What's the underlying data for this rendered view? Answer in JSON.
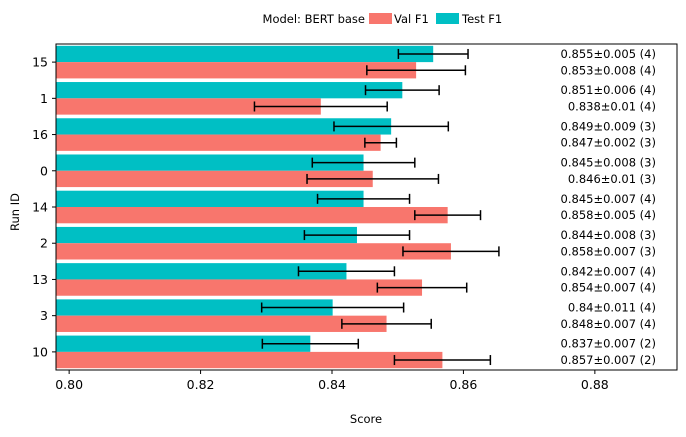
{
  "chart_data": {
    "type": "bar",
    "orientation": "horizontal",
    "legend": {
      "title": "Model: BERT base",
      "placement": "top-center",
      "entries": [
        {
          "label": "Val F1",
          "color": "#f8766d"
        },
        {
          "label": "Test F1",
          "color": "#00bfc4"
        }
      ]
    },
    "xlabel": "Score",
    "ylabel": "Run ID",
    "xlim": [
      0.798,
      0.8925
    ],
    "xticks": [
      0.8,
      0.82,
      0.84,
      0.86,
      0.88
    ],
    "xtick_labels": [
      "0.80",
      "0.82",
      "0.84",
      "0.86",
      "0.88"
    ],
    "categories": [
      "15",
      "1",
      "16",
      "0",
      "14",
      "2",
      "13",
      "3",
      "10"
    ],
    "series": [
      {
        "name": "Val F1",
        "color": "#f8766d",
        "values": [
          0.8528,
          0.8383,
          0.8474,
          0.8462,
          0.8576,
          0.8581,
          0.8537,
          0.8483,
          0.8568
        ],
        "errors": [
          0.0075,
          0.0101,
          0.0024,
          0.01,
          0.005,
          0.0073,
          0.0068,
          0.0068,
          0.0073
        ],
        "labels": [
          "0.853±0.008 (4)",
          "0.838±0.01 (4)",
          "0.847±0.002 (3)",
          "0.846±0.01 (3)",
          "0.858±0.005 (4)",
          "0.858±0.007 (3)",
          "0.854±0.007 (4)",
          "0.848±0.007 (4)",
          "0.857±0.007 (2)"
        ]
      },
      {
        "name": "Test F1",
        "color": "#00bfc4",
        "values": [
          0.8554,
          0.8507,
          0.849,
          0.8448,
          0.8448,
          0.8438,
          0.8422,
          0.8401,
          0.8367
        ],
        "errors": [
          0.0053,
          0.0056,
          0.0087,
          0.0078,
          0.007,
          0.008,
          0.0073,
          0.0108,
          0.0073
        ],
        "labels": [
          "0.855±0.005 (4)",
          "0.851±0.006 (4)",
          "0.849±0.009 (3)",
          "0.845±0.008 (3)",
          "0.845±0.007 (4)",
          "0.844±0.008 (3)",
          "0.842±0.007 (4)",
          "0.84±0.011 (4)",
          "0.837±0.007 (2)"
        ]
      }
    ],
    "grid": false
  }
}
